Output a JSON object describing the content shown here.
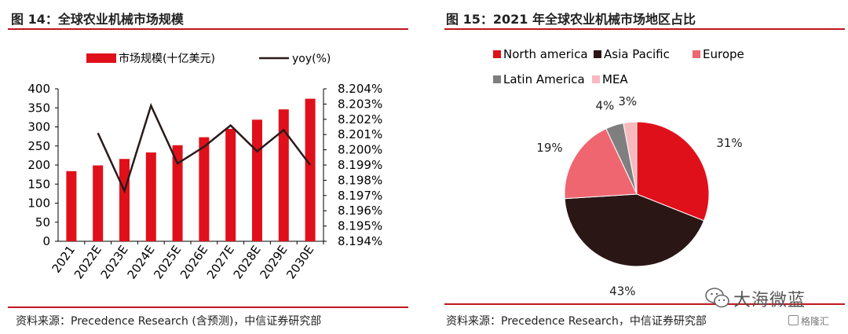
{
  "left": {
    "title": "图 14：全球农业机械市场规模",
    "source": "资料来源：Precedence Research (含预测)，中信证券研究部"
  },
  "right": {
    "title": "图 15：2021 年全球农业机械市场地区占比",
    "source": "资料来源：Precedence Research，中信证券研究部"
  },
  "watermark": {
    "text": "大海微蓝",
    "sub": "格隆汇"
  },
  "colors": {
    "bar": "#e0101b",
    "line": "#2a1a1a",
    "rule": "#c0161f",
    "north_america": "#e0101b",
    "asia_pacific": "#2b1616",
    "europe": "#f06670",
    "latin_america": "#7f7f7f",
    "mea": "#f7b9bd"
  },
  "chart_data": [
    {
      "type": "bar",
      "categories": [
        "2021",
        "2022E",
        "2023E",
        "2024E",
        "2025E",
        "2026E",
        "2027E",
        "2028E",
        "2029E",
        "2030E"
      ],
      "series": [
        {
          "name": "市场规模(十亿美元)",
          "type": "bar",
          "axis": "left",
          "values": [
            184,
            199,
            216,
            233,
            252,
            273,
            295,
            319,
            346,
            374
          ]
        },
        {
          "name": "yoy(%)",
          "type": "line",
          "axis": "right",
          "values": [
            null,
            8.2011,
            8.1973,
            8.2029,
            8.1991,
            8.2002,
            8.2016,
            8.1999,
            8.2013,
            8.199
          ]
        }
      ],
      "y_left": {
        "lim": [
          0,
          400
        ],
        "ticks": [
          "0",
          "50",
          "100",
          "150",
          "200",
          "250",
          "300",
          "350",
          "400"
        ]
      },
      "y_right": {
        "lim": [
          8.194,
          8.204
        ],
        "ticks": [
          "8.194%",
          "8.195%",
          "8.196%",
          "8.197%",
          "8.198%",
          "8.199%",
          "8.200%",
          "8.201%",
          "8.202%",
          "8.203%",
          "8.204%"
        ]
      },
      "legend": {
        "placement": "top-center"
      },
      "grid": false
    },
    {
      "type": "pie",
      "slices": [
        {
          "name": "North america",
          "value": 31,
          "label": "31%",
          "color": "#e0101b"
        },
        {
          "name": "Asia Pacific",
          "value": 43,
          "label": "43%",
          "color": "#2b1616"
        },
        {
          "name": "Europe",
          "value": 19,
          "label": "19%",
          "color": "#f06670"
        },
        {
          "name": "Latin America",
          "value": 4,
          "label": "4%",
          "color": "#7f7f7f"
        },
        {
          "name": "MEA",
          "value": 3,
          "label": "3%",
          "color": "#f7b9bd"
        }
      ],
      "legend": {
        "placement": "top"
      }
    }
  ]
}
